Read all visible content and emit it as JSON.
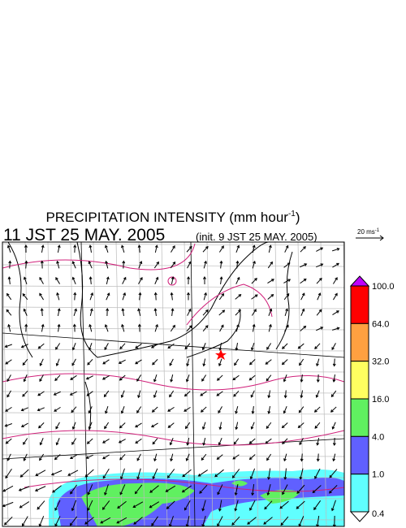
{
  "header": {
    "title": "PRECIPITATION INTENSITY (mm hour",
    "title_exponent": "-1",
    "title_close": ")",
    "valid_time": "11 JST 25 MAY. 2005",
    "init_time": "(init. 9 JST 25 MAY. 2005)"
  },
  "wind_legend": {
    "label": "20 ms",
    "exponent": "-1"
  },
  "colorbar": {
    "labels": [
      "100.0",
      "64.0",
      "32.0",
      "16.0",
      "4.0",
      "1.0",
      "0.4"
    ],
    "colors": [
      "#ff0000",
      "#ffa040",
      "#ffff60",
      "#60f060",
      "#6060ff",
      "#60ffff"
    ],
    "over_color": "#c000ff",
    "under_color": "#ffffff"
  }
}
